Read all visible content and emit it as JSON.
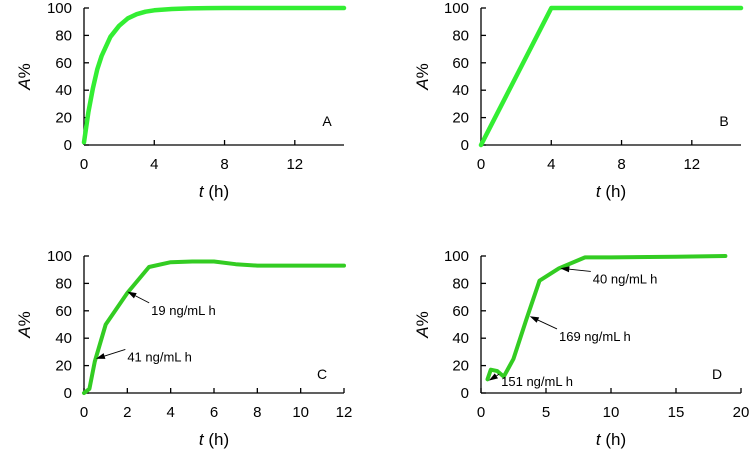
{
  "chart_data": [
    {
      "type": "line",
      "panel_label": "A",
      "xlabel_var": "t",
      "xlabel_unit": " (h)",
      "ylabel": "A%",
      "xlim": [
        0,
        14.8
      ],
      "ylim": [
        0,
        100
      ],
      "xticks": [
        0,
        4,
        8,
        12
      ],
      "yticks": [
        0,
        20,
        40,
        60,
        80,
        100
      ],
      "line_color": "#33ee33",
      "series": [
        {
          "x": [
            0,
            0.25,
            0.5,
            0.75,
            1,
            1.5,
            2,
            2.5,
            3,
            3.5,
            4,
            5,
            6,
            7,
            8,
            10,
            12,
            14.8
          ],
          "y": [
            2,
            24,
            41,
            55,
            65,
            79,
            87,
            92.5,
            95.5,
            97.3,
            98.3,
            99.3,
            99.7,
            99.9,
            100,
            100,
            100,
            100
          ]
        }
      ],
      "annotations": []
    },
    {
      "type": "line",
      "panel_label": "B",
      "xlabel_var": "t",
      "xlabel_unit": " (h)",
      "ylabel": "A%",
      "xlim": [
        0,
        14.8
      ],
      "ylim": [
        0,
        100
      ],
      "xticks": [
        0,
        4,
        8,
        12
      ],
      "yticks": [
        0,
        20,
        40,
        60,
        80,
        100
      ],
      "line_color": "#33ee33",
      "series": [
        {
          "x": [
            0,
            4,
            14.8
          ],
          "y": [
            0,
            100,
            100
          ]
        }
      ],
      "annotations": []
    },
    {
      "type": "line",
      "panel_label": "C",
      "xlabel_var": "t",
      "xlabel_unit": " (h)",
      "ylabel": "A%",
      "xlim": [
        0,
        12
      ],
      "ylim": [
        0,
        100
      ],
      "xticks": [
        0,
        2,
        4,
        6,
        8,
        10,
        12
      ],
      "yticks": [
        0,
        20,
        40,
        60,
        80,
        100
      ],
      "line_color": "#33cc22",
      "series": [
        {
          "x": [
            0,
            0.25,
            0.5,
            1,
            2,
            3,
            4,
            5,
            6,
            7,
            8,
            10,
            12
          ],
          "y": [
            0,
            3,
            23,
            50,
            73,
            92,
            95.5,
            96,
            96,
            94,
            93,
            93,
            93
          ]
        }
      ],
      "annotations": [
        {
          "text": "19 ng/mL h",
          "x": 2.0,
          "y": 74,
          "tx": 3.1,
          "ty": 57
        },
        {
          "text": "41 ng/mL h",
          "x": 0.55,
          "y": 25,
          "tx": 2.0,
          "ty": 23
        }
      ]
    },
    {
      "type": "line",
      "panel_label": "D",
      "xlabel_var": "t",
      "xlabel_unit": " (h)",
      "ylabel": "A%",
      "xlim": [
        0,
        20
      ],
      "ylim": [
        0,
        100
      ],
      "xticks": [
        0,
        5,
        10,
        15,
        20
      ],
      "yticks": [
        0,
        20,
        40,
        60,
        80,
        100
      ],
      "line_color": "#33cc22",
      "series": [
        {
          "x": [
            0.5,
            0.75,
            1.25,
            1.75,
            2.5,
            3.5,
            4.5,
            5,
            6,
            8,
            10,
            15,
            18.8
          ],
          "y": [
            10,
            17,
            16,
            12,
            25,
            54,
            82,
            85,
            91,
            99,
            99,
            99.5,
            100
          ]
        }
      ],
      "annotations": [
        {
          "text": "40 ng/mL h",
          "x": 6.1,
          "y": 91,
          "tx": 8.6,
          "ty": 80
        },
        {
          "text": "169 ng/mL h",
          "x": 3.75,
          "y": 56,
          "tx": 6.0,
          "ty": 38
        },
        {
          "text": "151 ng/mL h",
          "x": 0.6,
          "y": 9,
          "tx": 1.55,
          "ty": 5
        }
      ]
    }
  ]
}
